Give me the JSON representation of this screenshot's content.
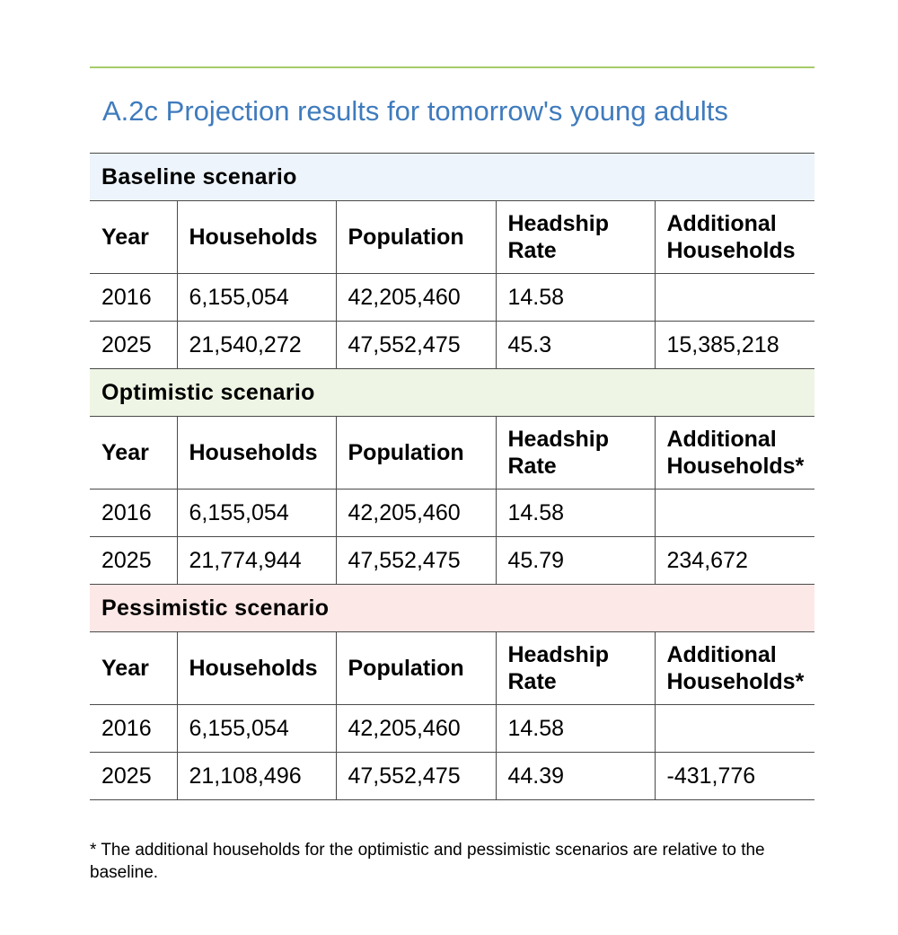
{
  "title": "A.2c Projection results for tomorrow's young adults",
  "columns": [
    "Year",
    "Households",
    "Population",
    "Headship Rate",
    "Additional Households"
  ],
  "sections": [
    {
      "name": "Baseline scenario",
      "color": "#edf4fb",
      "headers": [
        "Year",
        "Households",
        "Population",
        "Headship Rate",
        "Additional Households"
      ],
      "rows": [
        [
          "2016",
          "6,155,054",
          "42,205,460",
          "14.58",
          ""
        ],
        [
          "2025",
          "21,540,272",
          "47,552,475",
          "45.3",
          "15,385,218"
        ]
      ]
    },
    {
      "name": "Optimistic scenario",
      "color": "#eef5e4",
      "headers": [
        "Year",
        "Households",
        "Population",
        "Headship Rate",
        "Additional Households*"
      ],
      "rows": [
        [
          "2016",
          "6,155,054",
          "42,205,460",
          "14.58",
          ""
        ],
        [
          "2025",
          "21,774,944",
          "47,552,475",
          "45.79",
          "234,672"
        ]
      ]
    },
    {
      "name": "Pessimistic scenario",
      "color": "#fce8e6",
      "headers": [
        "Year",
        "Households",
        "Population",
        "Headship Rate",
        "Additional Households*"
      ],
      "rows": [
        [
          "2016",
          "6,155,054",
          "42,205,460",
          "14.58",
          ""
        ],
        [
          "2025",
          "21,108,496",
          "47,552,475",
          "44.39",
          "-431,776"
        ]
      ]
    }
  ],
  "footnote": "* The additional households for the optimistic and pessimistic scenarios are relative to the baseline.",
  "accent_color": "#3f7bbd",
  "rule_color": "#a7cc6a"
}
